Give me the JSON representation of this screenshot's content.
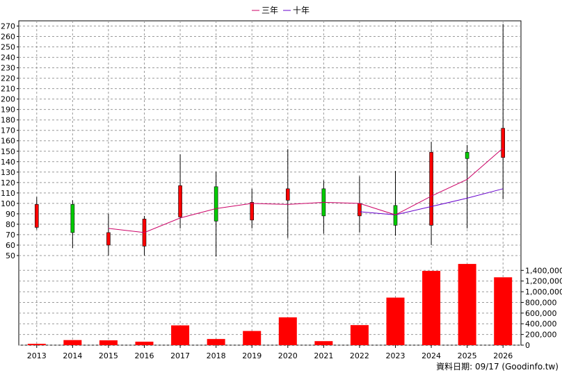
{
  "chart_data": {
    "type": "candlestick-with-volume",
    "legend": {
      "placement": "top-center",
      "items": [
        {
          "label": "三年",
          "color": "#cc0066"
        },
        {
          "label": "十年",
          "color": "#6600cc"
        }
      ]
    },
    "years": [
      "2013",
      "2014",
      "2015",
      "2016",
      "2017",
      "2018",
      "2019",
      "2020",
      "2021",
      "2022",
      "2023",
      "2024",
      "2025",
      "2026"
    ],
    "candles": [
      {
        "year": "2013",
        "open": 77,
        "close": 99,
        "high": 106,
        "low": 75
      },
      {
        "year": "2014",
        "open": 99,
        "close": 72,
        "high": 103,
        "low": 57
      },
      {
        "year": "2015",
        "open": 60,
        "close": 72,
        "high": 90,
        "low": 50
      },
      {
        "year": "2016",
        "open": 59,
        "close": 85,
        "high": 88,
        "low": 50
      },
      {
        "year": "2017",
        "open": 87,
        "close": 117,
        "high": 147,
        "low": 76
      },
      {
        "year": "2018",
        "open": 116,
        "close": 83,
        "high": 130,
        "low": 49
      },
      {
        "year": "2019",
        "open": 84,
        "close": 101,
        "high": 114,
        "low": 76
      },
      {
        "year": "2020",
        "open": 103,
        "close": 114,
        "high": 152,
        "low": 67
      },
      {
        "year": "2021",
        "open": 114,
        "close": 88,
        "high": 122,
        "low": 71
      },
      {
        "year": "2022",
        "open": 88,
        "close": 100,
        "high": 126,
        "low": 72
      },
      {
        "year": "2023",
        "open": 98,
        "close": 79,
        "high": 131,
        "low": 69
      },
      {
        "year": "2024",
        "open": 79,
        "close": 149,
        "high": 159,
        "low": 60
      },
      {
        "year": "2025",
        "open": 149,
        "close": 143,
        "high": 156,
        "low": 76
      },
      {
        "year": "2026",
        "open": 144,
        "close": 172,
        "high": 272,
        "low": 104
      }
    ],
    "colors": {
      "up": "#ff0000",
      "down": "#00cc00",
      "wick": "#000000",
      "volume": "#ff0000"
    },
    "ma3": [
      null,
      null,
      76,
      72,
      86,
      95,
      100,
      99,
      101,
      100,
      89,
      107,
      123,
      153
    ],
    "ma10": [
      null,
      null,
      null,
      null,
      null,
      null,
      null,
      null,
      null,
      92,
      89,
      97,
      105,
      114
    ],
    "price_axis": {
      "min": 40,
      "max": 275,
      "ticks": [
        50,
        60,
        70,
        80,
        90,
        100,
        110,
        120,
        130,
        140,
        150,
        160,
        170,
        180,
        190,
        200,
        210,
        220,
        230,
        240,
        250,
        260,
        270
      ]
    },
    "volume": [
      25000,
      95000,
      90000,
      65000,
      370000,
      115000,
      265000,
      520000,
      75000,
      375000,
      890000,
      1390000,
      1520000,
      1270000
    ],
    "volume_axis": {
      "max": 1560000,
      "ticks": [
        0,
        200000,
        400000,
        600000,
        800000,
        1000000,
        1200000,
        1400000
      ],
      "tick_labels": [
        "0",
        "200,000",
        "400,000",
        "600,000",
        "800,000",
        "1,000,000",
        "1,200,000",
        "1,400,000"
      ]
    },
    "grid": true
  },
  "footer": {
    "text": "資料日期: 09/17  (Goodinfo.tw)"
  }
}
